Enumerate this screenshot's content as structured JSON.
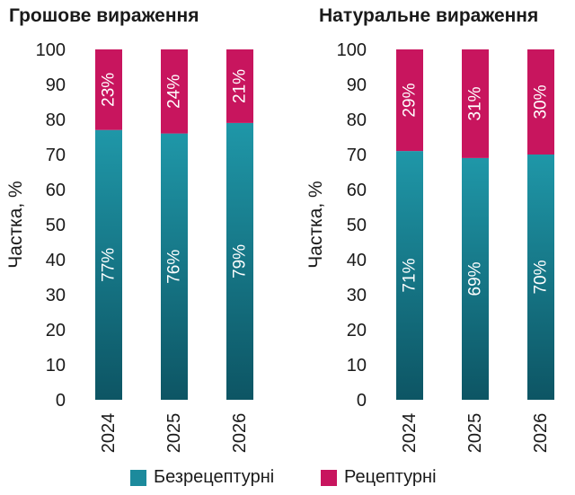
{
  "chart_data": [
    {
      "type": "bar",
      "stacked": true,
      "title": "Грошове вираження",
      "ylabel": "Частка, %",
      "categories": [
        "2024",
        "2025",
        "2026"
      ],
      "yticks": [
        "0",
        "10",
        "20",
        "30",
        "40",
        "50",
        "60",
        "70",
        "80",
        "90",
        "100"
      ],
      "ylim": [
        0,
        100
      ],
      "series": [
        {
          "name": "Безрецептурні",
          "values": [
            77,
            76,
            79
          ],
          "labels": [
            "77%",
            "76%",
            "79%"
          ]
        },
        {
          "name": "Рецептурні",
          "values": [
            23,
            24,
            21
          ],
          "labels": [
            "23%",
            "24%",
            "21%"
          ]
        }
      ]
    },
    {
      "type": "bar",
      "stacked": true,
      "title": "Натуральне вираження",
      "ylabel": "Частка, %",
      "categories": [
        "2024",
        "2025",
        "2026"
      ],
      "yticks": [
        "0",
        "10",
        "20",
        "30",
        "40",
        "50",
        "60",
        "70",
        "80",
        "90",
        "100"
      ],
      "ylim": [
        0,
        100
      ],
      "series": [
        {
          "name": "Безрецептурні",
          "values": [
            71,
            69,
            70
          ],
          "labels": [
            "71%",
            "69%",
            "70%"
          ]
        },
        {
          "name": "Рецептурні",
          "values": [
            29,
            31,
            30
          ],
          "labels": [
            "29%",
            "31%",
            "30%"
          ]
        }
      ]
    }
  ],
  "legend": [
    {
      "label": "Безрецептурні",
      "color": "#1c8a9c"
    },
    {
      "label": "Рецептурні",
      "color": "#c8155e"
    }
  ],
  "colors": {
    "teal_top": "#1f97a8",
    "teal_bottom": "#0d5564",
    "magenta": "#c8155e",
    "bar_text": "#ffffff"
  }
}
